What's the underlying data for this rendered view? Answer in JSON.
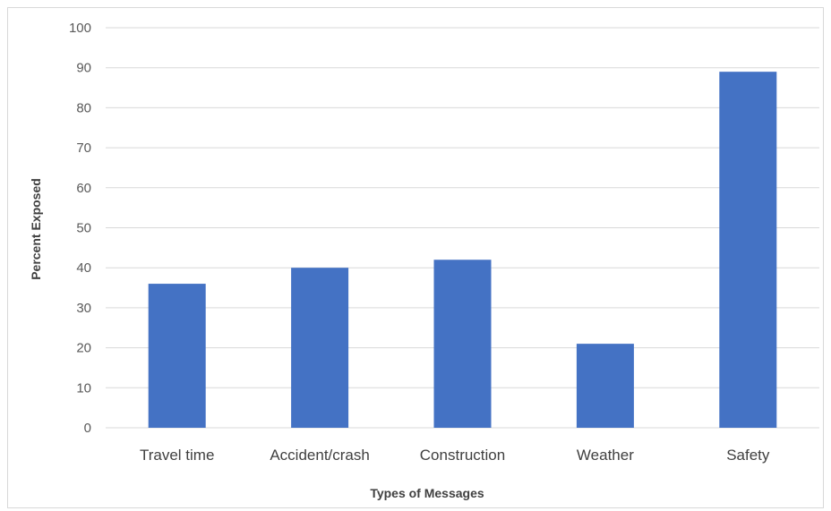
{
  "chart_data": {
    "type": "bar",
    "title": "",
    "xlabel": "Types of Messages",
    "ylabel": "Percent Exposed",
    "categories": [
      "Travel time",
      "Accident/crash",
      "Construction",
      "Weather",
      "Safety"
    ],
    "values": [
      36,
      40,
      42,
      21,
      89
    ],
    "ylim": [
      0,
      100
    ],
    "yticks": [
      "0",
      "10",
      "20",
      "30",
      "40",
      "50",
      "60",
      "70",
      "80",
      "90",
      "100"
    ],
    "grid": true,
    "legend": "none",
    "bar_color": "#4472C4",
    "gridline_color": "#d9d9d9"
  }
}
